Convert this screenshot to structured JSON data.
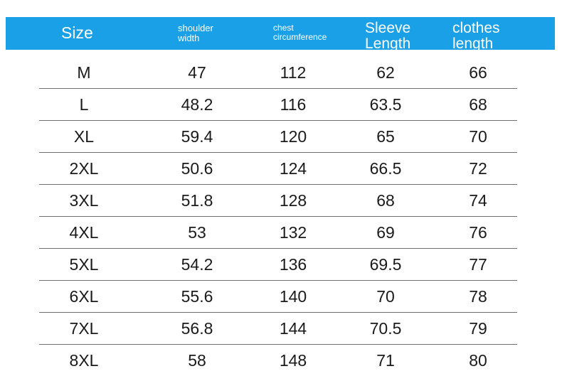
{
  "header": {
    "size": "Size",
    "shoulder_line1": "shoulder",
    "shoulder_line2": "width",
    "chest_line1": "chest",
    "chest_line2": "circumference",
    "sleeve_line1": "Sleeve",
    "sleeve_line2": "Length",
    "clothes_line1": "clothes",
    "clothes_line2": "length"
  },
  "colors": {
    "header_bg": "#1aa0e6",
    "header_text": "#ffffff",
    "divider": "#6e6e6e"
  },
  "rows": [
    {
      "size": "M",
      "shoulder": "47",
      "chest": "112",
      "sleeve": "62",
      "length": "66"
    },
    {
      "size": "L",
      "shoulder": "48.2",
      "chest": "116",
      "sleeve": "63.5",
      "length": "68"
    },
    {
      "size": "XL",
      "shoulder": "59.4",
      "chest": "120",
      "sleeve": "65",
      "length": "70"
    },
    {
      "size": "2XL",
      "shoulder": "50.6",
      "chest": "124",
      "sleeve": "66.5",
      "length": "72"
    },
    {
      "size": "3XL",
      "shoulder": "51.8",
      "chest": "128",
      "sleeve": "68",
      "length": "74"
    },
    {
      "size": "4XL",
      "shoulder": "53",
      "chest": "132",
      "sleeve": "69",
      "length": "76"
    },
    {
      "size": "5XL",
      "shoulder": "54.2",
      "chest": "136",
      "sleeve": "69.5",
      "length": "77"
    },
    {
      "size": "6XL",
      "shoulder": "55.6",
      "chest": "140",
      "sleeve": "70",
      "length": "78"
    },
    {
      "size": "7XL",
      "shoulder": "56.8",
      "chest": "144",
      "sleeve": "70.5",
      "length": "79"
    },
    {
      "size": "8XL",
      "shoulder": "58",
      "chest": "148",
      "sleeve": "71",
      "length": "80"
    }
  ]
}
